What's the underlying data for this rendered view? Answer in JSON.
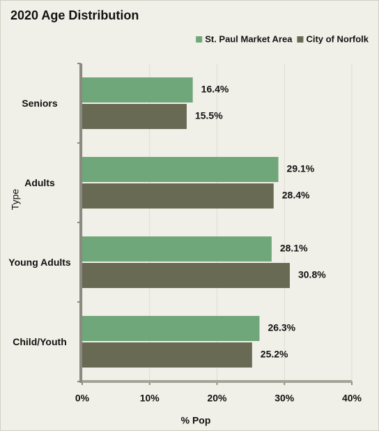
{
  "chart_data": {
    "type": "bar",
    "orientation": "horizontal",
    "title": "2020 Age Distribution",
    "x_label": "% Pop",
    "y_label": "Type",
    "categories": [
      "Seniors",
      "Adults",
      "Young Adults",
      "Child/Youth"
    ],
    "series": [
      {
        "name": "St. Paul Market Area",
        "color": "#6fa67a",
        "values": [
          16.4,
          29.1,
          28.1,
          26.3
        ],
        "value_labels": [
          "16.4%",
          "29.1%",
          "28.1%",
          "26.3%"
        ]
      },
      {
        "name": "City of Norfolk",
        "color": "#696a53",
        "values": [
          15.5,
          28.4,
          30.8,
          25.2
        ],
        "value_labels": [
          "15.5%",
          "28.4%",
          "30.8%",
          "25.2%"
        ]
      }
    ],
    "xlim": [
      0,
      40
    ],
    "xticks": [
      {
        "value": 0,
        "label": "0%"
      },
      {
        "value": 10,
        "label": "10%"
      },
      {
        "value": 20,
        "label": "20%"
      },
      {
        "value": 30,
        "label": "30%"
      },
      {
        "value": 40,
        "label": "40%"
      }
    ],
    "grid": true,
    "legend": "top-right"
  }
}
